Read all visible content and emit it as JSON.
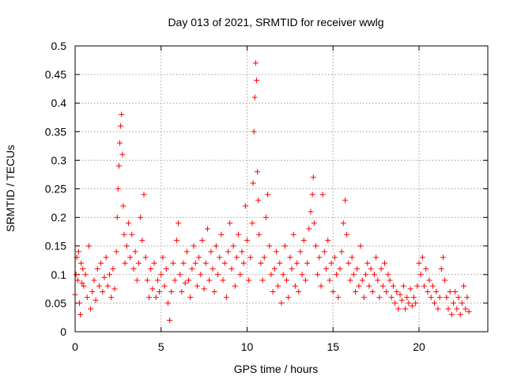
{
  "chart_data": {
    "type": "scatter",
    "title": "Day 013 of 2021, SRMTID for receiver wwlg",
    "xlabel": "GPS time / hours",
    "ylabel": "SRMTID / TECUs",
    "xlim": [
      0,
      24
    ],
    "ylim": [
      0,
      0.5
    ],
    "xticks": [
      0,
      5,
      10,
      15,
      20
    ],
    "xtick_labels": [
      "0",
      "5",
      "10",
      "15",
      "20"
    ],
    "yticks": [
      0,
      0.05,
      0.1,
      0.15,
      0.2,
      0.25,
      0.3,
      0.35,
      0.4,
      0.45,
      0.5
    ],
    "ytick_labels": [
      "0",
      "0.05",
      "0.1",
      "0.15",
      "0.2",
      "0.25",
      "0.3",
      "0.35",
      "0.4",
      "0.45",
      "0.5"
    ],
    "grid": true,
    "marker": "plus",
    "color": "#ff0000",
    "series": [
      {
        "name": "SRMTID",
        "points": [
          [
            0.0,
            0.065
          ],
          [
            0.05,
            0.1
          ],
          [
            0.1,
            0.13
          ],
          [
            0.15,
            0.09
          ],
          [
            0.2,
            0.14
          ],
          [
            0.25,
            0.05
          ],
          [
            0.3,
            0.03
          ],
          [
            0.35,
            0.12
          ],
          [
            0.4,
            0.085
          ],
          [
            0.45,
            0.11
          ],
          [
            0.5,
            0.08
          ],
          [
            0.6,
            0.1
          ],
          [
            0.7,
            0.06
          ],
          [
            0.8,
            0.15
          ],
          [
            0.9,
            0.04
          ],
          [
            1.0,
            0.07
          ],
          [
            1.1,
            0.09
          ],
          [
            1.2,
            0.055
          ],
          [
            1.3,
            0.11
          ],
          [
            1.4,
            0.08
          ],
          [
            1.5,
            0.12
          ],
          [
            1.6,
            0.07
          ],
          [
            1.7,
            0.095
          ],
          [
            1.8,
            0.13
          ],
          [
            1.9,
            0.08
          ],
          [
            2.0,
            0.1
          ],
          [
            2.1,
            0.06
          ],
          [
            2.2,
            0.11
          ],
          [
            2.3,
            0.075
          ],
          [
            2.4,
            0.14
          ],
          [
            2.45,
            0.2
          ],
          [
            2.5,
            0.25
          ],
          [
            2.55,
            0.29
          ],
          [
            2.6,
            0.33
          ],
          [
            2.65,
            0.36
          ],
          [
            2.7,
            0.38
          ],
          [
            2.75,
            0.31
          ],
          [
            2.8,
            0.22
          ],
          [
            2.85,
            0.17
          ],
          [
            2.9,
            0.12
          ],
          [
            3.0,
            0.15
          ],
          [
            3.1,
            0.19
          ],
          [
            3.2,
            0.13
          ],
          [
            3.3,
            0.17
          ],
          [
            3.4,
            0.11
          ],
          [
            3.5,
            0.14
          ],
          [
            3.6,
            0.09
          ],
          [
            3.7,
            0.12
          ],
          [
            3.8,
            0.2
          ],
          [
            3.9,
            0.16
          ],
          [
            4.0,
            0.24
          ],
          [
            4.1,
            0.13
          ],
          [
            4.2,
            0.09
          ],
          [
            4.3,
            0.06
          ],
          [
            4.4,
            0.11
          ],
          [
            4.5,
            0.075
          ],
          [
            4.6,
            0.12
          ],
          [
            4.7,
            0.06
          ],
          [
            4.8,
            0.09
          ],
          [
            4.9,
            0.07
          ],
          [
            5.0,
            0.1
          ],
          [
            5.1,
            0.13
          ],
          [
            5.2,
            0.08
          ],
          [
            5.3,
            0.11
          ],
          [
            5.4,
            0.05
          ],
          [
            5.5,
            0.02
          ],
          [
            5.6,
            0.07
          ],
          [
            5.7,
            0.12
          ],
          [
            5.8,
            0.09
          ],
          [
            5.9,
            0.16
          ],
          [
            6.0,
            0.19
          ],
          [
            6.1,
            0.1
          ],
          [
            6.2,
            0.07
          ],
          [
            6.3,
            0.12
          ],
          [
            6.4,
            0.085
          ],
          [
            6.5,
            0.14
          ],
          [
            6.6,
            0.09
          ],
          [
            6.7,
            0.06
          ],
          [
            6.8,
            0.11
          ],
          [
            6.9,
            0.15
          ],
          [
            7.0,
            0.12
          ],
          [
            7.1,
            0.08
          ],
          [
            7.2,
            0.13
          ],
          [
            7.3,
            0.1
          ],
          [
            7.4,
            0.16
          ],
          [
            7.5,
            0.075
          ],
          [
            7.6,
            0.12
          ],
          [
            7.7,
            0.18
          ],
          [
            7.8,
            0.09
          ],
          [
            7.9,
            0.14
          ],
          [
            8.0,
            0.11
          ],
          [
            8.1,
            0.07
          ],
          [
            8.2,
            0.15
          ],
          [
            8.3,
            0.1
          ],
          [
            8.4,
            0.13
          ],
          [
            8.5,
            0.17
          ],
          [
            8.6,
            0.09
          ],
          [
            8.7,
            0.12
          ],
          [
            8.8,
            0.06
          ],
          [
            8.9,
            0.14
          ],
          [
            9.0,
            0.19
          ],
          [
            9.1,
            0.11
          ],
          [
            9.2,
            0.15
          ],
          [
            9.3,
            0.08
          ],
          [
            9.4,
            0.13
          ],
          [
            9.5,
            0.17
          ],
          [
            9.6,
            0.1
          ],
          [
            9.7,
            0.14
          ],
          [
            9.8,
            0.12
          ],
          [
            9.9,
            0.22
          ],
          [
            10.0,
            0.16
          ],
          [
            10.1,
            0.09
          ],
          [
            10.2,
            0.13
          ],
          [
            10.3,
            0.19
          ],
          [
            10.35,
            0.26
          ],
          [
            10.4,
            0.35
          ],
          [
            10.45,
            0.41
          ],
          [
            10.5,
            0.47
          ],
          [
            10.55,
            0.44
          ],
          [
            10.6,
            0.28
          ],
          [
            10.65,
            0.23
          ],
          [
            10.7,
            0.17
          ],
          [
            10.8,
            0.12
          ],
          [
            10.9,
            0.09
          ],
          [
            11.0,
            0.13
          ],
          [
            11.1,
            0.2
          ],
          [
            11.2,
            0.24
          ],
          [
            11.3,
            0.15
          ],
          [
            11.4,
            0.1
          ],
          [
            11.5,
            0.07
          ],
          [
            11.6,
            0.11
          ],
          [
            11.7,
            0.14
          ],
          [
            11.8,
            0.08
          ],
          [
            11.9,
            0.12
          ],
          [
            12.0,
            0.05
          ],
          [
            12.1,
            0.1
          ],
          [
            12.2,
            0.15
          ],
          [
            12.3,
            0.09
          ],
          [
            12.4,
            0.06
          ],
          [
            12.5,
            0.13
          ],
          [
            12.6,
            0.11
          ],
          [
            12.7,
            0.17
          ],
          [
            12.8,
            0.08
          ],
          [
            12.9,
            0.12
          ],
          [
            13.0,
            0.07
          ],
          [
            13.1,
            0.14
          ],
          [
            13.2,
            0.1
          ],
          [
            13.3,
            0.16
          ],
          [
            13.4,
            0.09
          ],
          [
            13.5,
            0.12
          ],
          [
            13.6,
            0.18
          ],
          [
            13.7,
            0.21
          ],
          [
            13.8,
            0.24
          ],
          [
            13.85,
            0.27
          ],
          [
            13.9,
            0.19
          ],
          [
            14.0,
            0.15
          ],
          [
            14.1,
            0.1
          ],
          [
            14.2,
            0.13
          ],
          [
            14.3,
            0.08
          ],
          [
            14.4,
            0.24
          ],
          [
            14.5,
            0.14
          ],
          [
            14.6,
            0.11
          ],
          [
            14.7,
            0.16
          ],
          [
            14.8,
            0.09
          ],
          [
            14.9,
            0.12
          ],
          [
            15.0,
            0.07
          ],
          [
            15.1,
            0.13
          ],
          [
            15.2,
            0.1
          ],
          [
            15.3,
            0.06
          ],
          [
            15.4,
            0.11
          ],
          [
            15.5,
            0.14
          ],
          [
            15.6,
            0.19
          ],
          [
            15.7,
            0.23
          ],
          [
            15.8,
            0.17
          ],
          [
            15.9,
            0.12
          ],
          [
            16.0,
            0.09
          ],
          [
            16.1,
            0.13
          ],
          [
            16.2,
            0.1
          ],
          [
            16.3,
            0.07
          ],
          [
            16.4,
            0.11
          ],
          [
            16.5,
            0.08
          ],
          [
            16.6,
            0.15
          ],
          [
            16.7,
            0.09
          ],
          [
            16.8,
            0.06
          ],
          [
            16.9,
            0.1
          ],
          [
            17.0,
            0.12
          ],
          [
            17.1,
            0.08
          ],
          [
            17.2,
            0.11
          ],
          [
            17.3,
            0.07
          ],
          [
            17.4,
            0.1
          ],
          [
            17.5,
            0.13
          ],
          [
            17.6,
            0.09
          ],
          [
            17.7,
            0.06
          ],
          [
            17.8,
            0.11
          ],
          [
            17.9,
            0.08
          ],
          [
            18.0,
            0.12
          ],
          [
            18.1,
            0.07
          ],
          [
            18.2,
            0.1
          ],
          [
            18.3,
            0.09
          ],
          [
            18.4,
            0.06
          ],
          [
            18.5,
            0.08
          ],
          [
            18.6,
            0.05
          ],
          [
            18.7,
            0.07
          ],
          [
            18.8,
            0.04
          ],
          [
            18.9,
            0.065
          ],
          [
            19.0,
            0.055
          ],
          [
            19.1,
            0.08
          ],
          [
            19.2,
            0.04
          ],
          [
            19.3,
            0.06
          ],
          [
            19.4,
            0.05
          ],
          [
            19.5,
            0.075
          ],
          [
            19.6,
            0.045
          ],
          [
            19.7,
            0.06
          ],
          [
            19.8,
            0.05
          ],
          [
            19.9,
            0.08
          ],
          [
            20.0,
            0.12
          ],
          [
            20.1,
            0.1
          ],
          [
            20.2,
            0.13
          ],
          [
            20.3,
            0.08
          ],
          [
            20.4,
            0.11
          ],
          [
            20.5,
            0.07
          ],
          [
            20.6,
            0.09
          ],
          [
            20.7,
            0.06
          ],
          [
            20.8,
            0.08
          ],
          [
            20.9,
            0.05
          ],
          [
            21.0,
            0.07
          ],
          [
            21.1,
            0.04
          ],
          [
            21.2,
            0.06
          ],
          [
            21.3,
            0.11
          ],
          [
            21.4,
            0.13
          ],
          [
            21.5,
            0.09
          ],
          [
            21.6,
            0.06
          ],
          [
            21.7,
            0.04
          ],
          [
            21.8,
            0.07
          ],
          [
            21.9,
            0.03
          ],
          [
            22.0,
            0.05
          ],
          [
            22.1,
            0.07
          ],
          [
            22.2,
            0.04
          ],
          [
            22.3,
            0.06
          ],
          [
            22.4,
            0.03
          ],
          [
            22.5,
            0.05
          ],
          [
            22.6,
            0.08
          ],
          [
            22.7,
            0.04
          ],
          [
            22.8,
            0.06
          ],
          [
            22.9,
            0.035
          ]
        ]
      }
    ]
  }
}
